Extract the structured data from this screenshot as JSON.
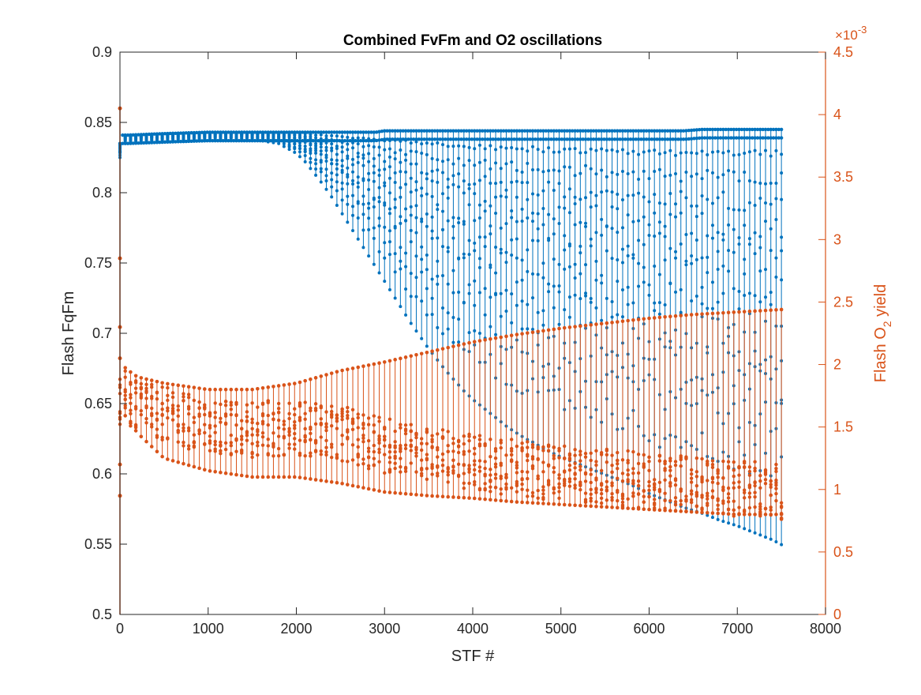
{
  "colors": {
    "blue": "#0072BD",
    "orange": "#D95319",
    "axis": "#262626"
  },
  "chart_data": {
    "type": "line",
    "title": "Combined FvFm and O2 oscillations",
    "xlabel": "STF #",
    "ylabel_left": "Flash FqFm",
    "ylabel_right_prefix": "Flash O",
    "ylabel_right_sub": "2",
    "ylabel_right_suffix": " yield",
    "right_axis_exponent_base": "×10",
    "right_axis_exponent_power": "-3",
    "xlim": [
      0,
      8000
    ],
    "ylim_left": [
      0.5,
      0.9
    ],
    "ylim_right": [
      0,
      4.5
    ],
    "x_ticks": [
      "0",
      "1000",
      "2000",
      "3000",
      "4000",
      "5000",
      "6000",
      "7000",
      "8000"
    ],
    "y_left_ticks": [
      "0.5",
      "0.55",
      "0.6",
      "0.65",
      "0.7",
      "0.75",
      "0.8",
      "0.85",
      "0.9"
    ],
    "y_right_ticks": [
      "0",
      "0.5",
      "1",
      "1.5",
      "2",
      "2.5",
      "3",
      "3.5",
      "4",
      "4.5"
    ],
    "grid": false,
    "series": [
      {
        "axis": "left",
        "color": "#0072BD",
        "marker": "dot",
        "points_x": [
          0,
          5,
          10,
          20,
          50,
          100,
          500,
          1000,
          1500,
          1800,
          2000,
          2100,
          2200,
          2300,
          2400,
          2500,
          2600,
          2700,
          2800,
          2900,
          3000,
          3100,
          3200,
          3300,
          3400,
          3500,
          3600,
          3700,
          3800,
          3900,
          4000,
          4100,
          4200,
          4300,
          4400,
          4500,
          4600,
          4700,
          4800,
          4900,
          5000,
          5200,
          5400,
          5600,
          5800,
          6000,
          6200,
          6400,
          6600,
          6800,
          7000,
          7200,
          7400,
          7520
        ],
        "lower_envelope": [
          0.825,
          0.832,
          0.835,
          0.836,
          0.836,
          0.836,
          0.837,
          0.838,
          0.838,
          0.835,
          0.828,
          0.822,
          0.814,
          0.806,
          0.797,
          0.787,
          0.777,
          0.767,
          0.757,
          0.747,
          0.737,
          0.727,
          0.717,
          0.707,
          0.698,
          0.689,
          0.681,
          0.673,
          0.666,
          0.659,
          0.653,
          0.648,
          0.643,
          0.638,
          0.633,
          0.629,
          0.625,
          0.622,
          0.618,
          0.615,
          0.612,
          0.607,
          0.602,
          0.597,
          0.592,
          0.586,
          0.581,
          0.576,
          0.572,
          0.567,
          0.563,
          0.558,
          0.553,
          0.549
        ],
        "upper_envelope": [
          0.835,
          0.838,
          0.84,
          0.841,
          0.841,
          0.841,
          0.842,
          0.843,
          0.843,
          0.843,
          0.843,
          0.843,
          0.843,
          0.843,
          0.843,
          0.843,
          0.843,
          0.843,
          0.843,
          0.843,
          0.844,
          0.844,
          0.844,
          0.844,
          0.844,
          0.844,
          0.844,
          0.844,
          0.844,
          0.844,
          0.844,
          0.844,
          0.844,
          0.844,
          0.844,
          0.844,
          0.844,
          0.844,
          0.844,
          0.844,
          0.844,
          0.844,
          0.844,
          0.844,
          0.844,
          0.844,
          0.844,
          0.844,
          0.845,
          0.845,
          0.845,
          0.845,
          0.845,
          0.845
        ]
      },
      {
        "axis": "right",
        "color": "#D95319",
        "marker": "dot",
        "points_x": [
          0,
          5,
          10,
          20,
          50,
          100,
          200,
          500,
          1000,
          1500,
          2000,
          2500,
          3000,
          3500,
          4000,
          4500,
          5000,
          5500,
          6000,
          6500,
          7000,
          7500,
          7520
        ],
        "lower_envelope": [
          0.95,
          1.2,
          1.4,
          1.55,
          1.6,
          1.55,
          1.45,
          1.25,
          1.15,
          1.1,
          1.1,
          1.05,
          0.98,
          0.95,
          0.93,
          0.9,
          0.88,
          0.86,
          0.84,
          0.82,
          0.8,
          0.8,
          0.8
        ],
        "upper_envelope": [
          4.05,
          2.85,
          2.3,
          2.0,
          1.98,
          1.95,
          1.9,
          1.85,
          1.8,
          1.8,
          1.85,
          1.95,
          2.02,
          2.1,
          2.18,
          2.24,
          2.29,
          2.33,
          2.37,
          2.4,
          2.42,
          2.44,
          2.44
        ],
        "cluster_center": [
          1.7,
          1.75,
          1.8,
          1.8,
          1.75,
          1.72,
          1.7,
          1.6,
          1.5,
          1.48,
          1.5,
          1.45,
          1.35,
          1.28,
          1.22,
          1.17,
          1.13,
          1.1,
          1.07,
          1.04,
          1.01,
          0.98,
          0.9
        ]
      }
    ]
  }
}
